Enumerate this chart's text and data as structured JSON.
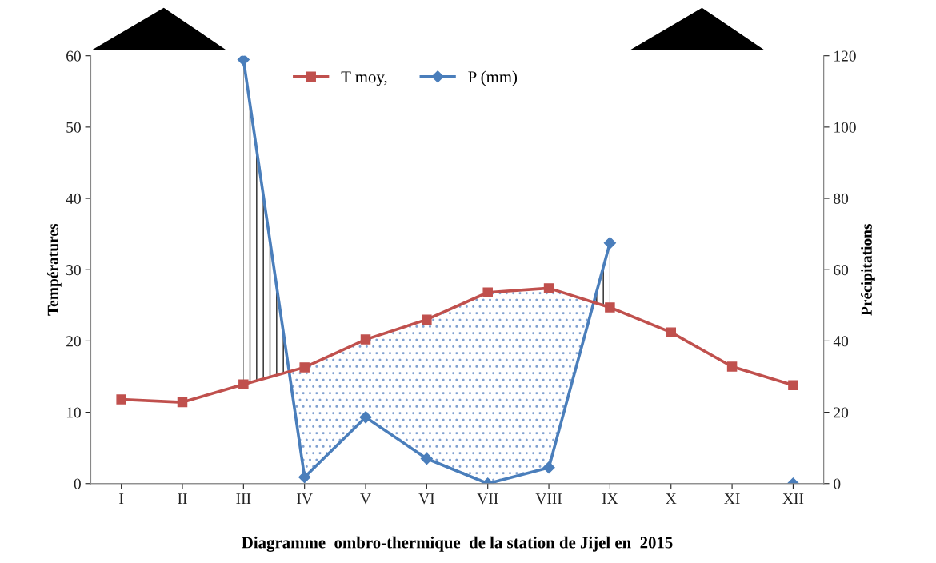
{
  "chart_data": {
    "type": "line",
    "title": "Diagramme  ombro-thermique  de la station de Jijel en  2015",
    "ylabel": "Températures",
    "y2label": "Précipitations",
    "categories": [
      "I",
      "II",
      "III",
      "IV",
      "V",
      "VI",
      "VII",
      "VIII",
      "IX",
      "X",
      "XI",
      "XII"
    ],
    "series": [
      {
        "name": "T moy,",
        "color": "#c0504d",
        "marker": "square",
        "values": [
          11.8,
          11.4,
          13.9,
          16.3,
          20.2,
          23.0,
          26.8,
          27.4,
          24.7,
          21.2,
          16.4,
          13.8
        ]
      },
      {
        "name": "P (mm)",
        "color": "#4a7ebb",
        "marker": "diamond",
        "axis": "y2",
        "values": [
          null,
          null,
          118.9,
          1.8,
          18.6,
          7.0,
          0,
          4.5,
          67.5,
          null,
          null,
          0
        ]
      }
    ],
    "ylim": [
      0,
      60
    ],
    "yticks": [
      0,
      10,
      20,
      30,
      40,
      50,
      60
    ],
    "y2lim": [
      0,
      120
    ],
    "y2ticks": [
      0,
      20,
      40,
      60,
      80,
      100,
      120
    ],
    "grid": false,
    "legend": "top"
  }
}
